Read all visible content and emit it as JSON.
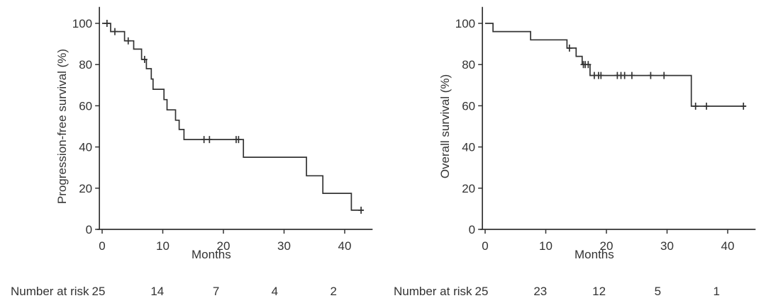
{
  "figure_title": "",
  "chart_data": [
    {
      "type": "line",
      "subtype": "kaplan_meier_step",
      "panel": "left",
      "title": "",
      "ylabel": "Progression-free survival (%)",
      "xlabel": "Months",
      "xlim": [
        0,
        44
      ],
      "ylim": [
        0,
        100
      ],
      "xticks": [
        0,
        10,
        20,
        30,
        40
      ],
      "yticks": [
        0,
        20,
        40,
        60,
        80,
        100
      ],
      "grid": false,
      "legend": null,
      "line_color": "#333333",
      "steps": [
        [
          0,
          100
        ],
        [
          1.4,
          100
        ],
        [
          1.4,
          96
        ],
        [
          3.7,
          96
        ],
        [
          3.7,
          91.5
        ],
        [
          5.2,
          91.5
        ],
        [
          5.2,
          87.5
        ],
        [
          6.5,
          87.5
        ],
        [
          6.5,
          82.5
        ],
        [
          7.3,
          82.5
        ],
        [
          7.3,
          78
        ],
        [
          8.1,
          78
        ],
        [
          8.1,
          73
        ],
        [
          8.4,
          73
        ],
        [
          8.4,
          68
        ],
        [
          10.2,
          68
        ],
        [
          10.2,
          63
        ],
        [
          10.7,
          63
        ],
        [
          10.7,
          58
        ],
        [
          12.1,
          58
        ],
        [
          12.1,
          53
        ],
        [
          12.7,
          53
        ],
        [
          12.7,
          48.5
        ],
        [
          13.5,
          48.5
        ],
        [
          13.5,
          43.6
        ],
        [
          23.3,
          43.6
        ],
        [
          23.3,
          35
        ],
        [
          33.7,
          35
        ],
        [
          33.7,
          26
        ],
        [
          36.4,
          26
        ],
        [
          36.4,
          17.5
        ],
        [
          41.1,
          17.5
        ],
        [
          41.1,
          9.3
        ],
        [
          43.1,
          9.3
        ]
      ],
      "censor_marks": [
        [
          0.8,
          100
        ],
        [
          2.1,
          96
        ],
        [
          4.3,
          91.5
        ],
        [
          7.0,
          82.5
        ],
        [
          16.8,
          43.6
        ],
        [
          17.7,
          43.6
        ],
        [
          22.1,
          43.6
        ],
        [
          22.5,
          43.6
        ],
        [
          42.7,
          9.3
        ]
      ],
      "number_at_risk": {
        "label": "Number at risk",
        "times": [
          0,
          10,
          20,
          30,
          40
        ],
        "values": [
          "25",
          "14",
          "7",
          "4",
          "2"
        ]
      }
    },
    {
      "type": "line",
      "subtype": "kaplan_meier_step",
      "panel": "right",
      "title": "",
      "ylabel": "Overall survival (%)",
      "xlabel": "Months",
      "xlim": [
        0,
        44
      ],
      "ylim": [
        0,
        100
      ],
      "xticks": [
        0,
        10,
        20,
        30,
        40
      ],
      "yticks": [
        0,
        20,
        40,
        60,
        80,
        100
      ],
      "grid": false,
      "legend": null,
      "line_color": "#333333",
      "steps": [
        [
          0,
          100
        ],
        [
          1.3,
          100
        ],
        [
          1.3,
          96
        ],
        [
          7.5,
          96
        ],
        [
          7.5,
          92
        ],
        [
          13.5,
          92
        ],
        [
          13.5,
          88
        ],
        [
          15.0,
          88
        ],
        [
          15.0,
          84
        ],
        [
          16.0,
          84
        ],
        [
          16.0,
          80
        ],
        [
          17.3,
          80
        ],
        [
          17.3,
          74.7
        ],
        [
          34.0,
          74.7
        ],
        [
          34.0,
          59.8
        ],
        [
          43.0,
          59.8
        ]
      ],
      "censor_marks": [
        [
          13.9,
          88
        ],
        [
          16.2,
          80
        ],
        [
          16.5,
          80
        ],
        [
          17.0,
          80
        ],
        [
          18.0,
          74.7
        ],
        [
          18.7,
          74.7
        ],
        [
          19.1,
          74.7
        ],
        [
          21.8,
          74.7
        ],
        [
          22.4,
          74.7
        ],
        [
          23.0,
          74.7
        ],
        [
          24.2,
          74.7
        ],
        [
          27.3,
          74.7
        ],
        [
          29.5,
          74.7
        ],
        [
          34.7,
          59.8
        ],
        [
          36.5,
          59.8
        ],
        [
          42.6,
          59.8
        ]
      ],
      "number_at_risk": {
        "label": "Number at risk",
        "times": [
          0,
          10,
          20,
          30,
          40
        ],
        "values": [
          "25",
          "23",
          "12",
          "5",
          "1"
        ]
      }
    }
  ]
}
